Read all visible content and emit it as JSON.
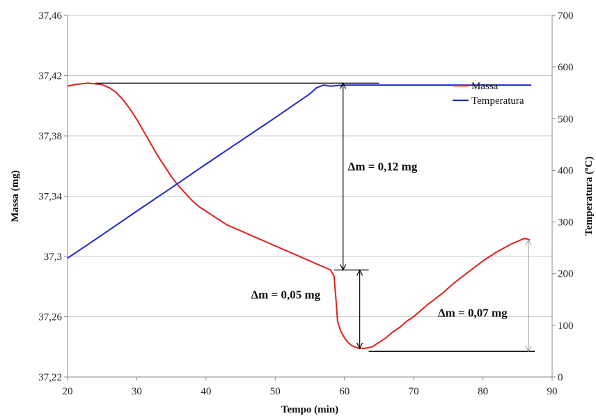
{
  "chart_data": {
    "type": "line",
    "xlabel": "Tempo (min)",
    "ylabel": "Massa (mg)",
    "y2label": "Temperatura (ºC)",
    "xlim": [
      20,
      90
    ],
    "ylim": [
      37.22,
      37.46
    ],
    "y2lim": [
      0,
      700
    ],
    "x_ticks": [
      "20",
      "30",
      "40",
      "50",
      "60",
      "70",
      "80",
      "90"
    ],
    "y_ticks": [
      "37,22",
      "37,26",
      "37,3",
      "37,34",
      "37,38",
      "37,42",
      "37,46"
    ],
    "y2_ticks": [
      "0",
      "100",
      "200",
      "300",
      "400",
      "500",
      "600",
      "700"
    ],
    "grid": "horizontal",
    "legend_position": "top-right",
    "series": [
      {
        "name": "Massa",
        "axis": "left",
        "color": "#e0201b",
        "x": [
          20,
          21,
          22,
          23,
          24,
          25,
          26,
          27,
          28,
          29,
          30,
          31,
          32,
          33,
          34,
          35,
          36,
          37,
          38,
          39,
          40,
          41,
          42,
          43,
          44,
          45,
          46,
          47,
          48,
          49,
          50,
          51,
          52,
          53,
          54,
          55,
          56,
          57,
          58,
          58.5,
          58.8,
          59,
          59.5,
          60,
          60.5,
          61,
          62,
          63,
          64,
          65,
          66,
          67,
          68,
          69,
          70,
          72,
          74,
          76,
          78,
          80,
          82,
          84,
          86,
          86.8
        ],
        "y": [
          37.413,
          37.414,
          37.4145,
          37.415,
          37.4145,
          37.414,
          37.412,
          37.409,
          37.404,
          37.398,
          37.391,
          37.383,
          37.375,
          37.367,
          37.36,
          37.353,
          37.347,
          37.342,
          37.337,
          37.333,
          37.33,
          37.327,
          37.324,
          37.321,
          37.319,
          37.317,
          37.315,
          37.313,
          37.311,
          37.309,
          37.307,
          37.305,
          37.303,
          37.301,
          37.299,
          37.297,
          37.295,
          37.293,
          37.291,
          37.287,
          37.27,
          37.257,
          37.25,
          37.246,
          37.243,
          37.241,
          37.239,
          37.239,
          37.24,
          37.243,
          37.246,
          37.25,
          37.253,
          37.257,
          37.26,
          37.268,
          37.275,
          37.283,
          37.29,
          37.297,
          37.303,
          37.308,
          37.312,
          37.311
        ]
      },
      {
        "name": "Temperatura",
        "axis": "right",
        "color": "#2129c9",
        "x": [
          20,
          25,
          30,
          35,
          40,
          45,
          50,
          55,
          56,
          57,
          58,
          59,
          60,
          70,
          80,
          87
        ],
        "y": [
          230,
          275,
          321,
          366,
          412,
          457,
          502,
          548,
          560,
          565,
          563,
          564,
          565,
          565,
          565,
          565
        ]
      }
    ],
    "reference_lines": [
      {
        "axis": "left",
        "y": 37.415,
        "x_from": 24,
        "x_to": 65
      },
      {
        "axis": "left",
        "y": 37.291,
        "x_from": 58.5,
        "x_to": 63.5
      },
      {
        "axis": "left",
        "y": 37.237,
        "x_from": 63.5,
        "x_to": 87.5
      }
    ],
    "arrows": [
      {
        "x": 59.8,
        "y_from": 37.415,
        "y_to": 37.291,
        "style": "dark"
      },
      {
        "x": 62.2,
        "y_from": 37.291,
        "y_to": 37.239,
        "style": "dark"
      },
      {
        "x": 86.6,
        "y_from": 37.311,
        "y_to": 37.237,
        "style": "light"
      }
    ],
    "annotations": [
      {
        "text": "Δm = 0,12 mg",
        "x": 60.5,
        "y": 37.357
      },
      {
        "text": "Δm = 0,05 mg",
        "x": 46.5,
        "y": 37.272
      },
      {
        "text": "Δm = 0,07 mg",
        "x": 73.5,
        "y": 37.26
      }
    ]
  }
}
